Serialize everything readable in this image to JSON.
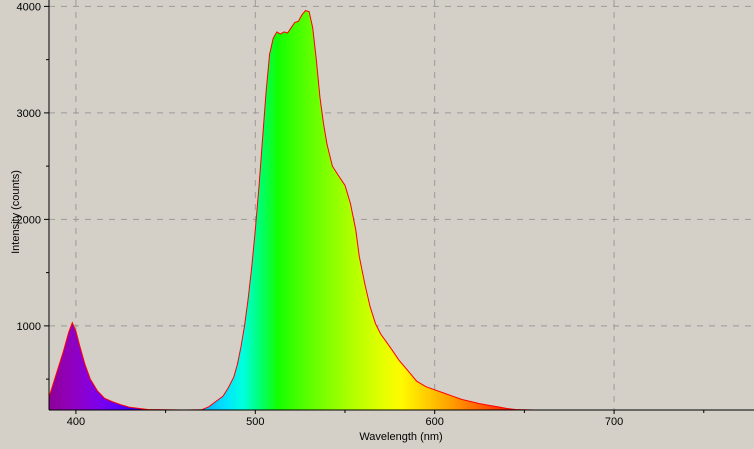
{
  "chart_data": {
    "type": "area",
    "title": "",
    "xlabel": "Wavelength (nm)",
    "ylabel": "Intensity (counts)",
    "xlim": [
      385,
      778
    ],
    "ylim": [
      210,
      4060
    ],
    "x_ticks_major": [
      400,
      500,
      600,
      700
    ],
    "x_ticks_minor": [
      450,
      550,
      650,
      750
    ],
    "y_ticks_major": [
      1000,
      2000,
      3000,
      4000
    ],
    "y_ticks_minor": [
      500,
      1500,
      2500,
      3500
    ],
    "grid": true,
    "grid_style": "dashed",
    "fill": "visible-spectrum gradient by wavelength",
    "line_color": "#ff0000",
    "background_color": "#d4d0c8",
    "series": [
      {
        "x": [
          385,
          390,
          393,
          396,
          398,
          400,
          402,
          405,
          408,
          412,
          416,
          420,
          425,
          430,
          440,
          450,
          460,
          470,
          474,
          478,
          482,
          485,
          488,
          490,
          492,
          494,
          496,
          498,
          500,
          502,
          504,
          506,
          508,
          510,
          512,
          514,
          516,
          518,
          520,
          522,
          524,
          526,
          528,
          530,
          532,
          534,
          536,
          538,
          540,
          543,
          546,
          550,
          553,
          556,
          558,
          561,
          564,
          567,
          570,
          573,
          576,
          580,
          585,
          590,
          595,
          600,
          605,
          610,
          615,
          620,
          625,
          630,
          635,
          640,
          645,
          650,
          655,
          660,
          680,
          700,
          720,
          750,
          778
        ],
        "y": [
          330,
          600,
          760,
          940,
          1030,
          950,
          820,
          640,
          500,
          390,
          320,
          290,
          260,
          235,
          215,
          212,
          210,
          212,
          240,
          290,
          340,
          420,
          520,
          640,
          800,
          1000,
          1250,
          1550,
          1900,
          2300,
          2750,
          3200,
          3550,
          3700,
          3760,
          3740,
          3760,
          3750,
          3800,
          3850,
          3860,
          3920,
          3960,
          3950,
          3800,
          3500,
          3150,
          2900,
          2700,
          2500,
          2420,
          2320,
          2150,
          1900,
          1650,
          1400,
          1180,
          1020,
          920,
          850,
          780,
          680,
          580,
          480,
          430,
          400,
          370,
          340,
          310,
          290,
          270,
          255,
          240,
          225,
          215,
          212,
          210,
          210,
          210,
          210,
          210,
          210,
          210
        ]
      }
    ]
  }
}
